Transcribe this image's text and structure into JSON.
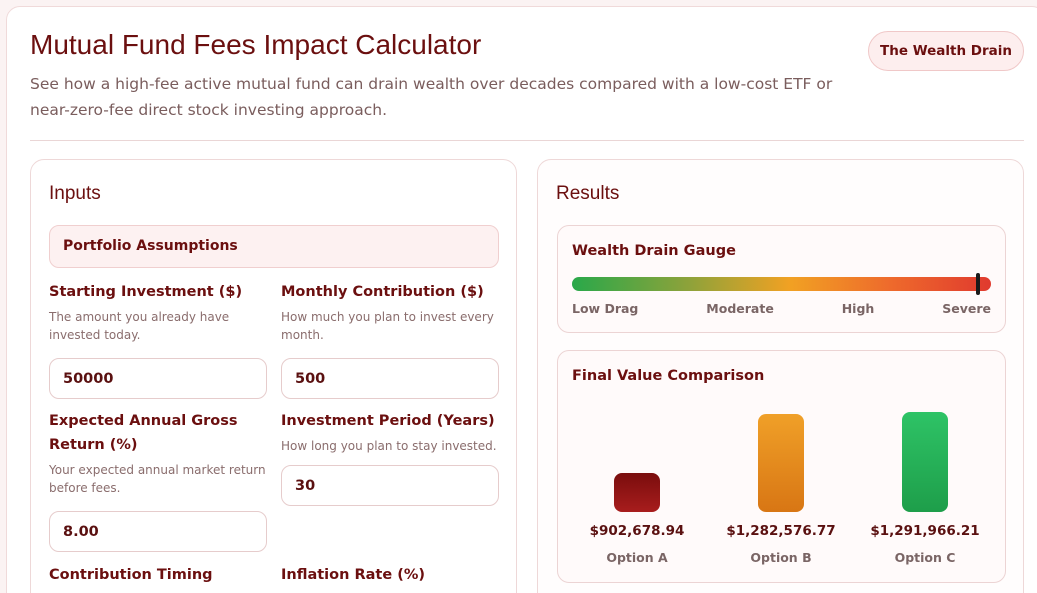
{
  "header": {
    "title": "Mutual Fund Fees Impact Calculator",
    "subtitle": "See how a high-fee active mutual fund can drain wealth over decades compared with a low-cost ETF or near-zero-fee direct stock investing approach.",
    "badge": "The Wealth Drain"
  },
  "inputs": {
    "title": "Inputs",
    "section": "Portfolio Assumptions",
    "starting_investment": {
      "label": "Starting Investment ($)",
      "help": "The amount you already have invested today.",
      "value": "50000"
    },
    "monthly_contribution": {
      "label": "Monthly Contribution ($)",
      "help": "How much you plan to invest every month.",
      "value": "500"
    },
    "annual_return": {
      "label": "Expected Annual Gross Return (%)",
      "help": "Your expected annual market return before fees.",
      "value": "8.00"
    },
    "investment_period": {
      "label": "Investment Period (Years)",
      "help": "How long you plan to stay invested.",
      "value": "30"
    },
    "contribution_timing": {
      "label": "Contribution Timing"
    },
    "inflation_rate": {
      "label": "Inflation Rate (%)"
    }
  },
  "results": {
    "title": "Results",
    "gauge": {
      "title": "Wealth Drain Gauge",
      "level": 0.97,
      "labels": [
        "Low Drag",
        "Moderate",
        "High",
        "Severe"
      ]
    },
    "comparison": {
      "title": "Final Value Comparison",
      "options": [
        {
          "label": "Option A",
          "value": "$902,678.94",
          "amount": 902678.94,
          "color_top": "#7a0d0d",
          "color_bottom": "#a81d1d"
        },
        {
          "label": "Option B",
          "value": "$1,282,576.77",
          "amount": 1282576.77,
          "color_top": "#f0a028",
          "color_bottom": "#d87614"
        },
        {
          "label": "Option C",
          "value": "$1,291,966.21",
          "amount": 1291966.21,
          "color_top": "#2ec366",
          "color_bottom": "#1e9e4a"
        }
      ]
    }
  }
}
